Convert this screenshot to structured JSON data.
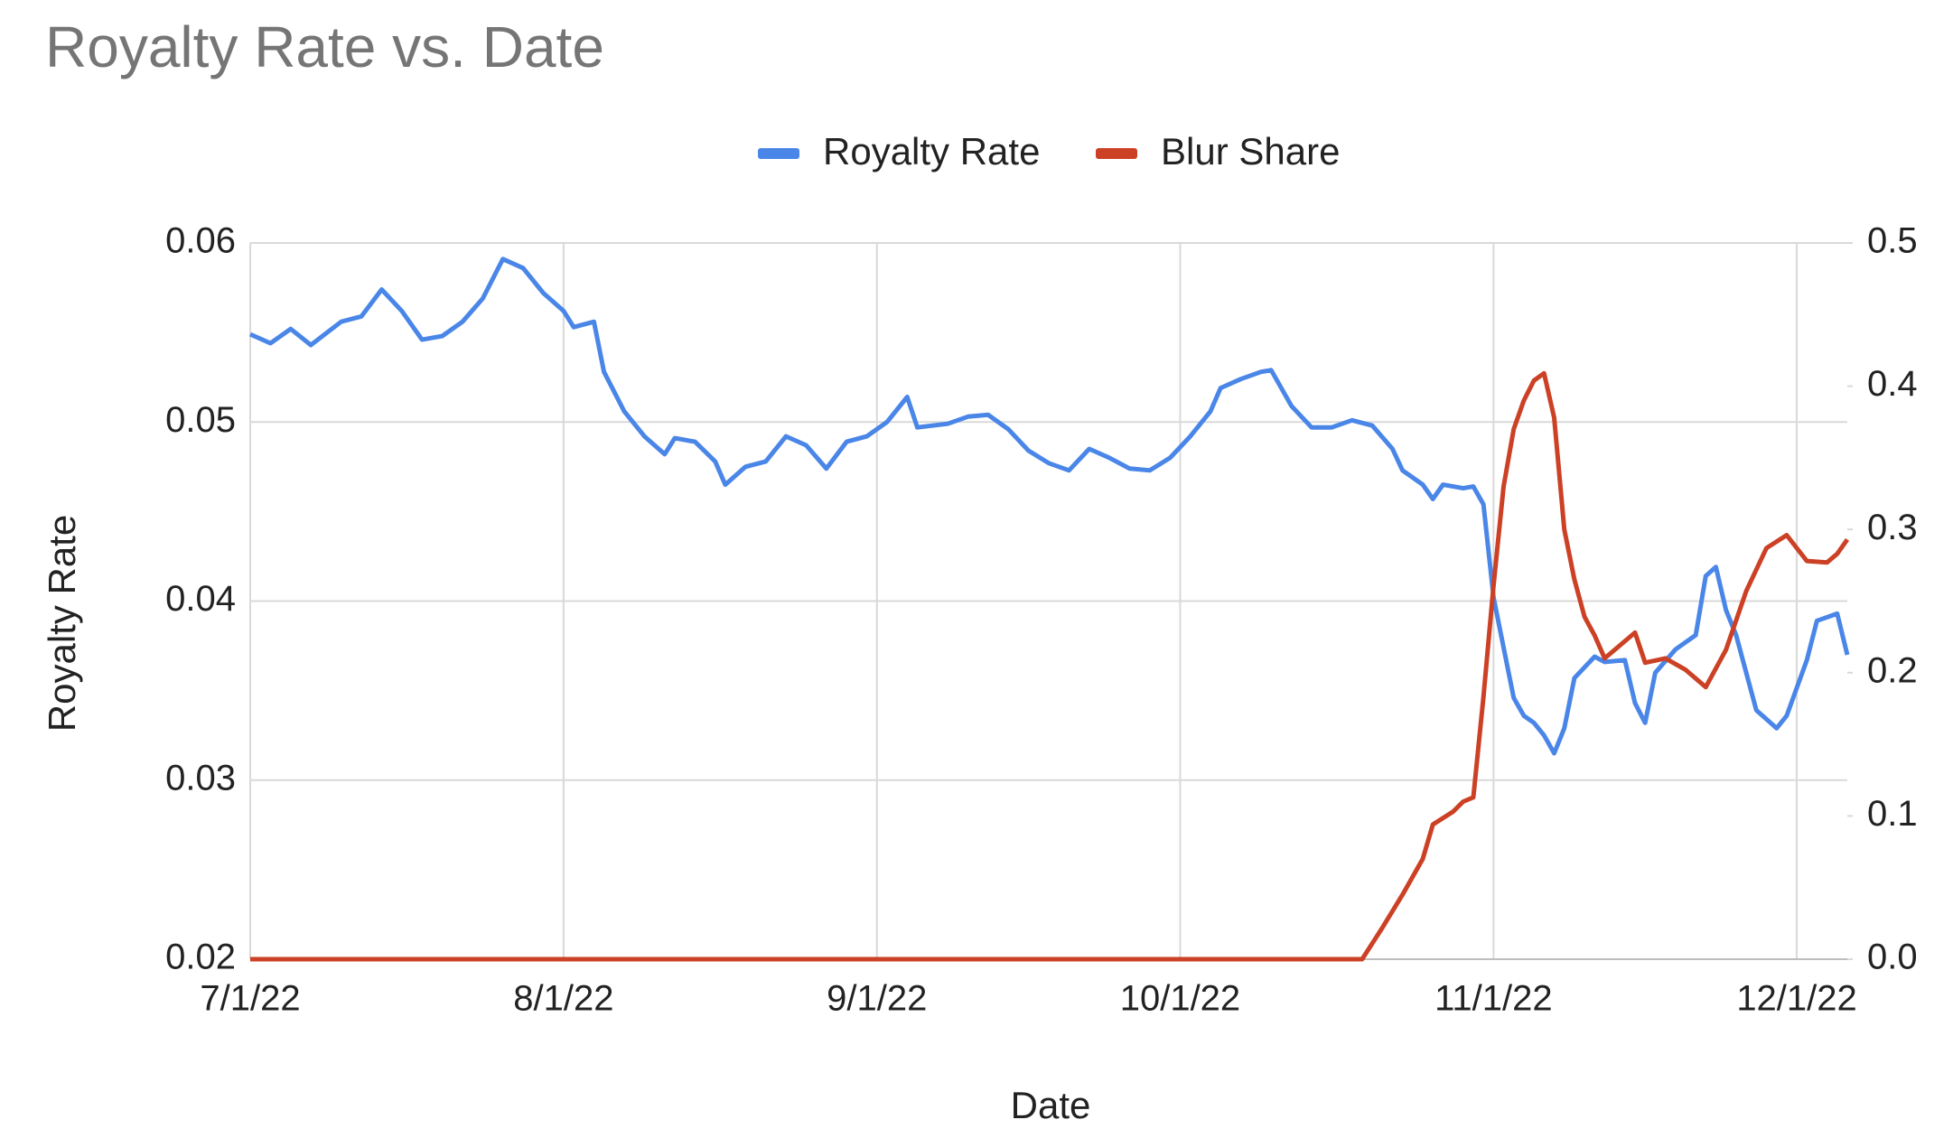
{
  "chart_data": {
    "type": "line",
    "title": "Royalty Rate vs. Date",
    "x_label": "Date",
    "y_label": "Royalty Rate",
    "xlim": [
      "7/1/22",
      "12/6/22"
    ],
    "xticks": [
      "7/1/22",
      "8/1/22",
      "9/1/22",
      "10/1/22",
      "11/1/22",
      "12/1/22"
    ],
    "ylim": [
      0.02,
      0.06
    ],
    "yticks": [
      0.02,
      0.03,
      0.04,
      0.05,
      0.06
    ],
    "y2lim": [
      0,
      0.5
    ],
    "y2ticks": [
      {
        "value": 0,
        "label": "0.0"
      },
      0.1,
      0.2,
      0.3,
      0.4,
      0.5
    ],
    "grid": true,
    "legend": "top",
    "series": [
      {
        "name": "Royalty Rate",
        "color": "#4a86e8",
        "axis": "y",
        "x": [
          "7/1/22",
          "7/3/22",
          "7/5/22",
          "7/7/22",
          "7/10/22",
          "7/12/22",
          "7/14/22",
          "7/16/22",
          "7/18/22",
          "7/20/22",
          "7/22/22",
          "7/24/22",
          "7/26/22",
          "7/28/22",
          "7/30/22",
          "8/1/22",
          "8/2/22",
          "8/4/22",
          "8/5/22",
          "8/7/22",
          "8/9/22",
          "8/11/22",
          "8/12/22",
          "8/14/22",
          "8/16/22",
          "8/17/22",
          "8/19/22",
          "8/21/22",
          "8/23/22",
          "8/25/22",
          "8/27/22",
          "8/29/22",
          "8/31/22",
          "9/2/22",
          "9/4/22",
          "9/5/22",
          "9/8/22",
          "9/10/22",
          "9/12/22",
          "9/14/22",
          "9/16/22",
          "9/18/22",
          "9/20/22",
          "9/22/22",
          "9/24/22",
          "9/26/22",
          "9/28/22",
          "9/30/22",
          "10/2/22",
          "10/4/22",
          "10/5/22",
          "10/7/22",
          "10/9/22",
          "10/10/22",
          "10/12/22",
          "10/14/22",
          "10/16/22",
          "10/18/22",
          "10/20/22",
          "10/22/22",
          "10/23/22",
          "10/25/22",
          "10/26/22",
          "10/27/22",
          "10/29/22",
          "10/30/22",
          "10/31/22",
          "11/1/22",
          "11/2/22",
          "11/3/22",
          "11/4/22",
          "11/5/22",
          "11/6/22",
          "11/7/22",
          "11/8/22",
          "11/9/22",
          "11/11/22",
          "11/12/22",
          "11/14/22",
          "11/15/22",
          "11/16/22",
          "11/17/22",
          "11/19/22",
          "11/21/22",
          "11/22/22",
          "11/23/22",
          "11/24/22",
          "11/25/22",
          "11/26/22",
          "11/27/22",
          "11/28/22",
          "11/29/22",
          "11/30/22",
          "12/2/22",
          "12/3/22",
          "12/5/22",
          "12/6/22"
        ],
        "values": [
          0.0549,
          0.0544,
          0.0552,
          0.0543,
          0.0556,
          0.0559,
          0.0574,
          0.0562,
          0.0546,
          0.0548,
          0.0556,
          0.0569,
          0.0591,
          0.0586,
          0.0572,
          0.0562,
          0.0553,
          0.0556,
          0.0528,
          0.0506,
          0.0492,
          0.0482,
          0.0491,
          0.0489,
          0.0478,
          0.0465,
          0.0475,
          0.0478,
          0.0492,
          0.0487,
          0.0474,
          0.0489,
          0.0492,
          0.05,
          0.0514,
          0.0497,
          0.0499,
          0.0503,
          0.0504,
          0.0496,
          0.0484,
          0.0477,
          0.0473,
          0.0485,
          0.048,
          0.0474,
          0.0473,
          0.048,
          0.0492,
          0.0506,
          0.0519,
          0.0524,
          0.0528,
          0.0529,
          0.0509,
          0.0497,
          0.0497,
          0.0501,
          0.0498,
          0.0485,
          0.0473,
          0.0465,
          0.0457,
          0.0465,
          0.0463,
          0.0464,
          0.0454,
          0.0402,
          0.0374,
          0.0346,
          0.0336,
          0.0332,
          0.0325,
          0.0315,
          0.0329,
          0.0357,
          0.0369,
          0.0366,
          0.0367,
          0.0343,
          0.0332,
          0.036,
          0.0373,
          0.0381,
          0.0414,
          0.0419,
          0.0395,
          0.0381,
          0.036,
          0.0339,
          0.0334,
          0.0329,
          0.0336,
          0.0367,
          0.0389,
          0.0393,
          0.037
        ]
      },
      {
        "name": "Blur Share",
        "color": "#cc4125",
        "axis": "y2",
        "x": [
          "7/1/22",
          "10/19/22",
          "10/21/22",
          "10/23/22",
          "10/25/22",
          "10/26/22",
          "10/28/22",
          "10/29/22",
          "10/30/22",
          "10/31/22",
          "11/1/22",
          "11/2/22",
          "11/3/22",
          "11/4/22",
          "11/5/22",
          "11/6/22",
          "11/7/22",
          "11/8/22",
          "11/9/22",
          "11/10/22",
          "11/11/22",
          "11/12/22",
          "11/15/22",
          "11/16/22",
          "11/18/22",
          "11/20/22",
          "11/22/22",
          "11/24/22",
          "11/26/22",
          "11/28/22",
          "11/30/22",
          "12/2/22",
          "12/4/22",
          "12/5/22",
          "12/6/22"
        ],
        "values": [
          0,
          0,
          0.022,
          0.045,
          0.07,
          0.094,
          0.103,
          0.11,
          0.113,
          0.183,
          0.261,
          0.33,
          0.37,
          0.39,
          0.404,
          0.409,
          0.378,
          0.3,
          0.265,
          0.239,
          0.226,
          0.21,
          0.228,
          0.207,
          0.21,
          0.202,
          0.19,
          0.216,
          0.257,
          0.287,
          0.296,
          0.278,
          0.277,
          0.283,
          0.293
        ]
      }
    ]
  }
}
